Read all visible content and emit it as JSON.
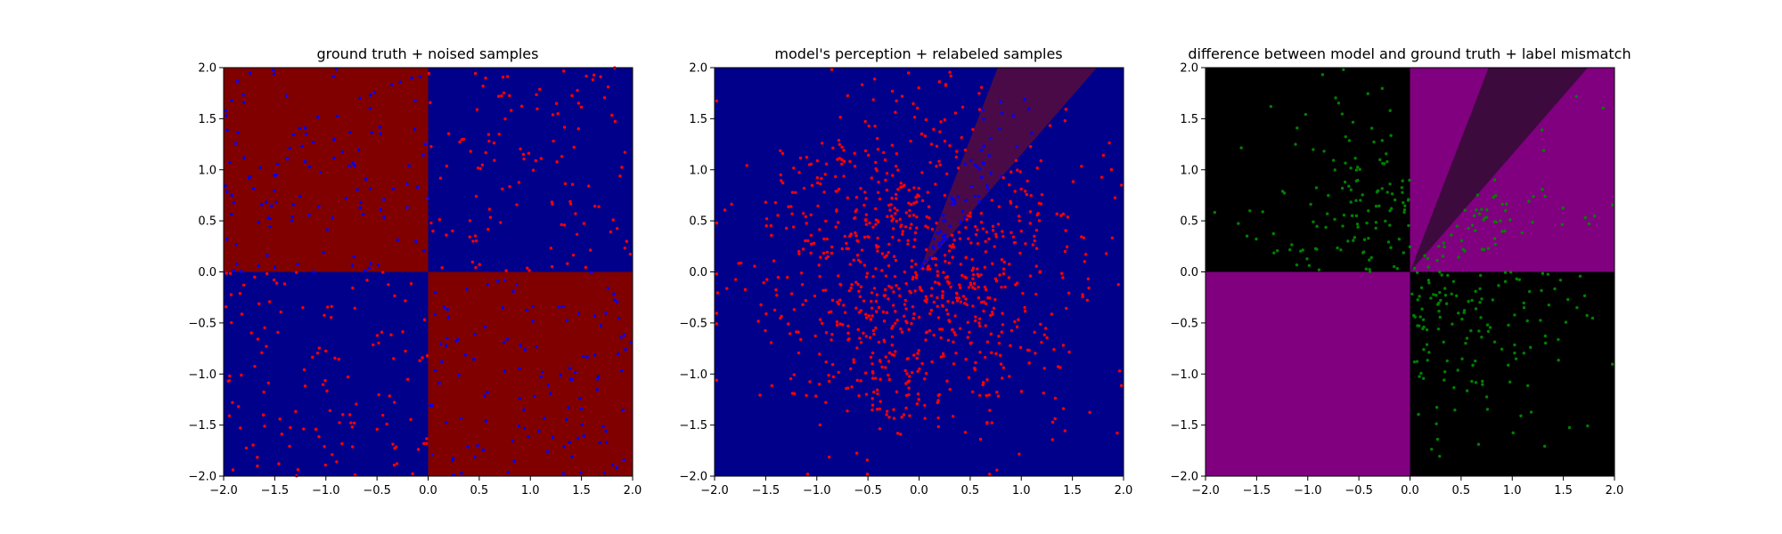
{
  "chart_data": [
    {
      "type": "scatter",
      "title": "ground truth + noised samples",
      "xlim": [
        -2.0,
        2.0
      ],
      "ylim": [
        -2.0,
        2.0
      ],
      "x_ticks": [
        "−2.0",
        "−1.5",
        "−1.0",
        "−0.5",
        "0.0",
        "0.5",
        "1.0",
        "1.5",
        "2.0"
      ],
      "y_ticks": [
        "−2.0",
        "−1.5",
        "−1.0",
        "−0.5",
        "0.0",
        "0.5",
        "1.0",
        "1.5",
        "2.0"
      ],
      "background": "XOR quadrant map: red where x*y<0, blue where x*y>0",
      "colors": {
        "region_a": "#800000",
        "region_b": "#00008b",
        "points_a": "#ff0000",
        "points_b": "#0000ff"
      },
      "points_per_region": 480,
      "grid": false,
      "legend": "none"
    },
    {
      "type": "scatter",
      "title": "model's perception + relabeled samples",
      "xlim": [
        -2.0,
        2.0
      ],
      "ylim": [
        -2.0,
        2.0
      ],
      "x_ticks": [
        "−2.0",
        "−1.5",
        "−1.0",
        "−0.5",
        "0.0",
        "0.5",
        "1.0",
        "1.5",
        "2.0"
      ],
      "y_ticks": [
        "−2.0",
        "−1.5",
        "−1.0",
        "−0.5",
        "0.0",
        "0.5",
        "1.0",
        "1.5",
        "2.0"
      ],
      "background": "blue everywhere except dark-red wedge from origin between slopes ~1.15 and ~2.6",
      "colors": {
        "region_main": "#00008b",
        "region_wedge": "#4a0a48",
        "points_main": "#ff0000",
        "points_wedge": "#0000ff"
      },
      "wedge_slopes": [
        1.15,
        2.6
      ],
      "points_total": 960,
      "grid": false,
      "legend": "none"
    },
    {
      "type": "scatter",
      "title": "difference between model and ground truth + label mismatch",
      "xlim": [
        -2.0,
        2.0
      ],
      "ylim": [
        -2.0,
        2.0
      ],
      "x_ticks": [
        "−2.0",
        "−1.5",
        "−1.0",
        "−0.5",
        "0.0",
        "0.5",
        "1.0",
        "1.5",
        "2.0"
      ],
      "y_ticks": [
        "−2.0",
        "−1.5",
        "−1.0",
        "−0.5",
        "0.0",
        "0.5",
        "1.0",
        "1.5",
        "2.0"
      ],
      "background": "black in top-left and bottom-right, magenta in top-right and bottom-left, dark purple wedge in top-right",
      "colors": {
        "match": "#000000",
        "mismatch": "#800080",
        "wedge": "#3d0a3d",
        "points": "#008000"
      },
      "wedge_slopes": [
        1.15,
        2.6
      ],
      "points_count": 330,
      "grid": false,
      "legend": "none"
    }
  ]
}
